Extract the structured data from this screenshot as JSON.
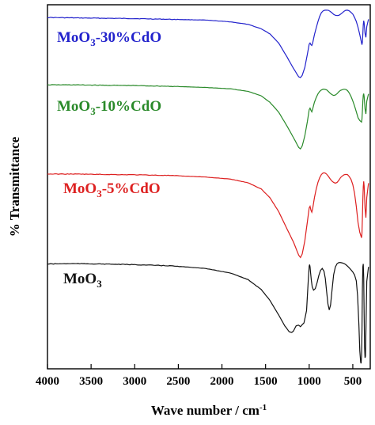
{
  "chart_data": {
    "type": "line",
    "title": "",
    "xlabel": "Wave number / cm",
    "xlabel_superscript": "-1",
    "ylabel": "% Transmittance",
    "xlim": [
      4000,
      300
    ],
    "x_reversed": true,
    "x_ticks": [
      4000,
      3500,
      3000,
      2500,
      2000,
      1500,
      1000,
      500
    ],
    "y_ticks_shown": false,
    "ylim": [
      0,
      100
    ],
    "y_units": "arbitrary, stacked offset",
    "grid": false,
    "legend": "inline labels",
    "series": [
      {
        "name": "MoO₃-30%CdO",
        "color": "#2222cc",
        "label_parts": [
          "MoO",
          "3",
          "-30%CdO"
        ],
        "x": [
          4000,
          3700,
          3400,
          3000,
          2600,
          2200,
          1900,
          1700,
          1550,
          1450,
          1350,
          1250,
          1180,
          1120,
          1100,
          1080,
          1050,
          1020,
          1000,
          990,
          980,
          970,
          960,
          940,
          920,
          900,
          880,
          860,
          840,
          820,
          800,
          780,
          760,
          740,
          720,
          700,
          680,
          660,
          640,
          620,
          600,
          580,
          560,
          540,
          520,
          500,
          480,
          460,
          440,
          420,
          400,
          395,
          390,
          385,
          380,
          375,
          370,
          360,
          350,
          340,
          320
        ],
        "y": [
          96.5,
          96.4,
          96.3,
          96.2,
          96.0,
          95.8,
          95.3,
          94.6,
          93.4,
          92.0,
          89.5,
          85.5,
          82.5,
          80.2,
          80.0,
          80.6,
          82.8,
          86.5,
          89.2,
          89.5,
          89.0,
          88.8,
          89.5,
          91.8,
          93.6,
          95.3,
          96.8,
          97.8,
          98.3,
          98.5,
          98.5,
          98.5,
          98.2,
          97.8,
          97.4,
          97.1,
          97.0,
          97.1,
          97.4,
          97.8,
          98.2,
          98.5,
          98.5,
          98.3,
          97.9,
          97.4,
          96.5,
          95.4,
          93.8,
          91.8,
          89.5,
          89.0,
          89.8,
          92.0,
          94.5,
          95.6,
          95.0,
          92.2,
          91.0,
          94.0,
          96.0
        ]
      },
      {
        "name": "MoO₃-10%CdO",
        "color": "#2a8a2a",
        "label_parts": [
          "MoO",
          "3",
          "-10%CdO"
        ],
        "x": [
          4000,
          3700,
          3400,
          3000,
          2600,
          2200,
          1900,
          1700,
          1550,
          1450,
          1350,
          1250,
          1180,
          1120,
          1100,
          1080,
          1050,
          1020,
          1000,
          990,
          980,
          970,
          960,
          940,
          920,
          900,
          880,
          860,
          840,
          820,
          800,
          780,
          760,
          740,
          720,
          700,
          680,
          660,
          640,
          620,
          600,
          580,
          560,
          540,
          520,
          500,
          480,
          460,
          440,
          420,
          400,
          395,
          390,
          385,
          380,
          375,
          370,
          360,
          350,
          340,
          320
        ],
        "y": [
          78.0,
          78.0,
          77.9,
          77.8,
          77.6,
          77.3,
          76.9,
          76.2,
          75.0,
          73.2,
          70.5,
          66.5,
          63.5,
          60.8,
          60.4,
          61.2,
          64.0,
          68.0,
          71.2,
          71.6,
          71.0,
          70.6,
          71.4,
          73.2,
          74.5,
          75.5,
          76.2,
          76.6,
          76.8,
          76.8,
          76.6,
          76.2,
          75.7,
          75.3,
          75.1,
          75.2,
          75.6,
          76.1,
          76.5,
          76.7,
          76.8,
          76.7,
          76.4,
          75.7,
          74.8,
          73.6,
          72.2,
          70.6,
          69.0,
          68.2,
          67.8,
          68.6,
          70.8,
          73.5,
          75.2,
          75.6,
          74.8,
          71.5,
          70.0,
          73.5,
          75.5
        ]
      },
      {
        "name": "MoO₃-5%CdO",
        "color": "#dd2020",
        "label_parts": [
          "MoO",
          "3",
          "-5%CdO"
        ],
        "x": [
          4000,
          3700,
          3400,
          3000,
          2600,
          2200,
          1900,
          1700,
          1550,
          1450,
          1350,
          1250,
          1180,
          1120,
          1100,
          1080,
          1050,
          1020,
          1000,
          990,
          980,
          970,
          960,
          940,
          920,
          900,
          880,
          860,
          840,
          820,
          800,
          780,
          760,
          740,
          720,
          700,
          680,
          660,
          640,
          620,
          600,
          580,
          560,
          540,
          520,
          500,
          480,
          460,
          440,
          420,
          400,
          395,
          390,
          385,
          380,
          375,
          370,
          360,
          350,
          340,
          320
        ],
        "y": [
          53.5,
          53.5,
          53.4,
          53.3,
          53.1,
          52.7,
          52.1,
          51.1,
          49.4,
          47.0,
          43.2,
          38.2,
          34.8,
          31.2,
          30.6,
          31.5,
          35.2,
          40.5,
          44.2,
          44.6,
          43.6,
          43.0,
          44.0,
          47.0,
          49.3,
          51.2,
          52.5,
          53.4,
          53.8,
          53.8,
          53.5,
          52.9,
          52.2,
          51.6,
          51.2,
          51.0,
          51.2,
          51.8,
          52.5,
          53.0,
          53.3,
          53.4,
          53.3,
          52.8,
          52.0,
          50.6,
          48.2,
          44.6,
          40.2,
          37.5,
          36.0,
          37.2,
          41.5,
          46.5,
          50.0,
          51.5,
          50.2,
          44.2,
          41.5,
          47.0,
          51.0
        ]
      },
      {
        "name": "MoO₃",
        "color": "#111111",
        "label_parts": [
          "MoO",
          "3",
          ""
        ],
        "x": [
          4000,
          3700,
          3400,
          3000,
          2600,
          2200,
          1900,
          1700,
          1550,
          1450,
          1350,
          1280,
          1230,
          1200,
          1180,
          1150,
          1120,
          1100,
          1060,
          1030,
          1010,
          1000,
          995,
          990,
          985,
          975,
          965,
          950,
          930,
          910,
          890,
          870,
          850,
          830,
          815,
          800,
          785,
          770,
          755,
          740,
          720,
          700,
          680,
          660,
          640,
          620,
          600,
          580,
          560,
          540,
          520,
          500,
          480,
          460,
          445,
          430,
          420,
          410,
          405,
          400,
          395,
          390,
          385,
          380,
          375,
          370,
          365,
          360,
          355,
          350,
          340,
          320
        ],
        "y": [
          28.8,
          28.9,
          28.8,
          28.6,
          28.3,
          27.6,
          26.3,
          24.5,
          21.8,
          18.8,
          14.8,
          11.8,
          10.2,
          10.0,
          10.4,
          11.8,
          12.0,
          11.6,
          12.6,
          16.0,
          24.5,
          28.2,
          28.6,
          28.0,
          26.6,
          24.2,
          22.5,
          21.6,
          22.0,
          23.6,
          25.6,
          27.0,
          27.6,
          26.8,
          24.8,
          21.2,
          17.8,
          16.2,
          17.5,
          21.2,
          25.8,
          28.0,
          28.9,
          29.2,
          29.2,
          29.1,
          28.9,
          28.6,
          28.2,
          27.7,
          27.2,
          26.6,
          25.8,
          24.2,
          20.0,
          12.0,
          5.0,
          1.8,
          1.5,
          3.5,
          10.0,
          22.0,
          28.0,
          28.8,
          25.0,
          15.0,
          6.0,
          3.0,
          3.5,
          10.0,
          24.0,
          28.0
        ]
      }
    ]
  }
}
